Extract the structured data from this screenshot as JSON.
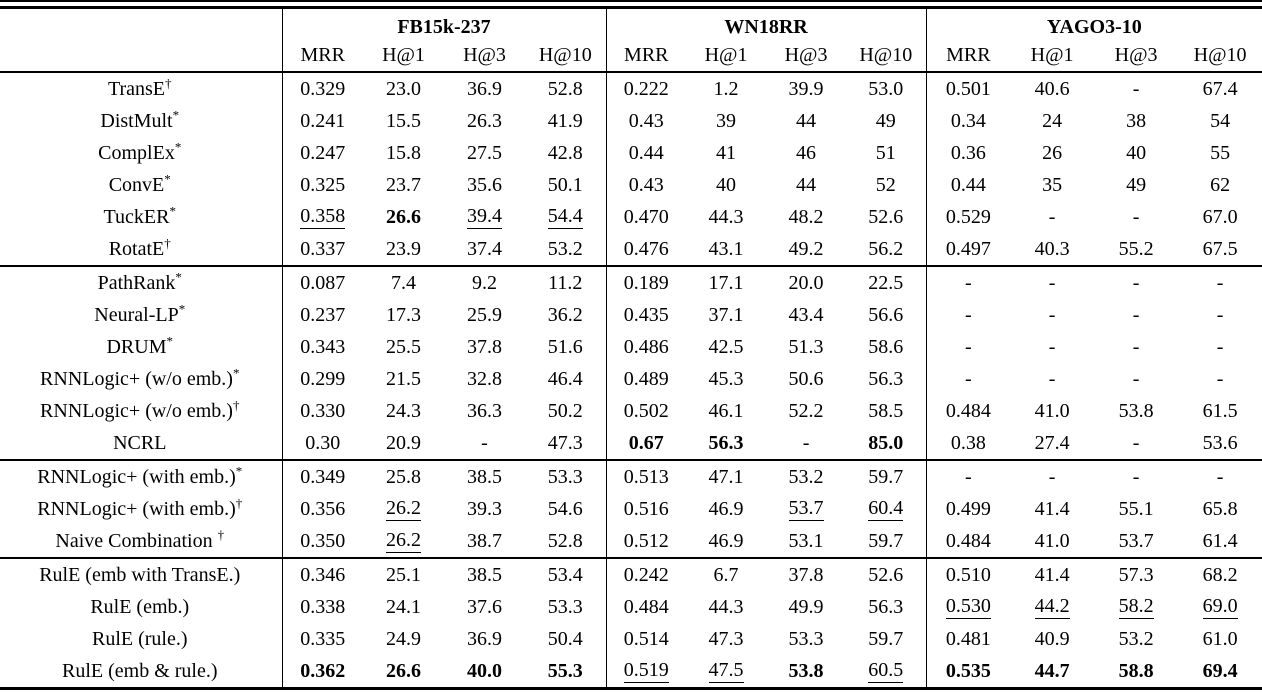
{
  "table": {
    "datasets": [
      {
        "label": "FB15k-237"
      },
      {
        "label": "WN18RR"
      },
      {
        "label": "YAGO3-10"
      }
    ],
    "metrics": [
      "MRR",
      "H@1",
      "H@3",
      "H@10"
    ],
    "groups": [
      {
        "rows": [
          {
            "label": "TransE",
            "sup": "†",
            "cells": [
              "0.329",
              "23.0",
              "36.9",
              "52.8",
              "0.222",
              "1.2",
              "39.9",
              "53.0",
              "0.501",
              "40.6",
              "-",
              "67.4"
            ]
          },
          {
            "label": "DistMult",
            "sup": "*",
            "cells": [
              "0.241",
              "15.5",
              "26.3",
              "41.9",
              "0.43",
              "39",
              "44",
              "49",
              "0.34",
              "24",
              "38",
              "54"
            ]
          },
          {
            "label": "ComplEx",
            "sup": "*",
            "cells": [
              "0.247",
              "15.8",
              "27.5",
              "42.8",
              "0.44",
              "41",
              "46",
              "51",
              "0.36",
              "26",
              "40",
              "55"
            ]
          },
          {
            "label": "ConvE",
            "sup": "*",
            "cells": [
              "0.325",
              "23.7",
              "35.6",
              "50.1",
              "0.43",
              "40",
              "44",
              "52",
              "0.44",
              "35",
              "49",
              "62"
            ]
          },
          {
            "label": "TuckER",
            "sup": "*",
            "cells": [
              "0.358|u",
              "26.6|b",
              "39.4|u",
              "54.4|u",
              "0.470",
              "44.3",
              "48.2",
              "52.6",
              "0.529",
              "-",
              "-",
              "67.0"
            ]
          },
          {
            "label": "RotatE",
            "sup": "†",
            "cells": [
              "0.337",
              "23.9",
              "37.4",
              "53.2",
              "0.476",
              "43.1",
              "49.2",
              "56.2",
              "0.497",
              "40.3",
              "55.2",
              "67.5"
            ]
          }
        ]
      },
      {
        "rows": [
          {
            "label": "PathRank",
            "sup": "*",
            "cells": [
              "0.087",
              "7.4",
              "9.2",
              "11.2",
              "0.189",
              "17.1",
              "20.0",
              "22.5",
              "-",
              "-",
              "-",
              "-"
            ]
          },
          {
            "label": "Neural-LP",
            "sup": "*",
            "cells": [
              "0.237",
              "17.3",
              "25.9",
              "36.2",
              "0.435",
              "37.1",
              "43.4",
              "56.6",
              "-",
              "-",
              "-",
              "-"
            ]
          },
          {
            "label": "DRUM",
            "sup": "*",
            "cells": [
              "0.343",
              "25.5",
              "37.8",
              "51.6",
              "0.486",
              "42.5",
              "51.3",
              "58.6",
              "-",
              "-",
              "-",
              "-"
            ]
          },
          {
            "label": "RNNLogic+ (w/o emb.)",
            "sup": "*",
            "cells": [
              "0.299",
              "21.5",
              "32.8",
              "46.4",
              "0.489",
              "45.3",
              "50.6",
              "56.3",
              "-",
              "-",
              "-",
              "-"
            ]
          },
          {
            "label": "RNNLogic+ (w/o emb.)",
            "sup": "†",
            "cells": [
              "0.330",
              "24.3",
              "36.3",
              "50.2",
              "0.502",
              "46.1",
              "52.2",
              "58.5",
              "0.484",
              "41.0",
              "53.8",
              "61.5"
            ]
          },
          {
            "label": "NCRL",
            "sup": "",
            "cells": [
              "0.30",
              "20.9",
              "-",
              "47.3",
              "0.67|b",
              "56.3|b",
              "-",
              "85.0|b",
              "0.38",
              "27.4",
              "-",
              "53.6"
            ]
          }
        ]
      },
      {
        "rows": [
          {
            "label": "RNNLogic+ (with emb.)",
            "sup": "*",
            "cells": [
              "0.349",
              "25.8",
              "38.5",
              "53.3",
              "0.513",
              "47.1",
              "53.2",
              "59.7",
              "-",
              "-",
              "-",
              "-"
            ]
          },
          {
            "label": "RNNLogic+ (with emb.)",
            "sup": "†",
            "cells": [
              "0.356",
              "26.2|u",
              "39.3",
              "54.6",
              "0.516",
              "46.9",
              "53.7|u",
              "60.4|u",
              "0.499",
              "41.4",
              "55.1",
              "65.8"
            ]
          },
          {
            "label": "Naive Combination",
            "sup": "†",
            "sup_gap": true,
            "cells": [
              "0.350",
              "26.2|u",
              "38.7",
              "52.8",
              "0.512",
              "46.9",
              "53.1",
              "59.7",
              "0.484",
              "41.0",
              "53.7",
              "61.4"
            ]
          }
        ]
      },
      {
        "rows": [
          {
            "label": "RulE (emb with TransE.)",
            "sup": "",
            "cells": [
              "0.346",
              "25.1",
              "38.5",
              "53.4",
              "0.242",
              "6.7",
              "37.8",
              "52.6",
              "0.510",
              "41.4",
              "57.3",
              "68.2"
            ]
          },
          {
            "label": "RulE (emb.)",
            "sup": "",
            "cells": [
              "0.338",
              "24.1",
              "37.6",
              "53.3",
              "0.484",
              "44.3",
              "49.9",
              "56.3",
              "0.530|u",
              "44.2|u",
              "58.2|u",
              "69.0|u"
            ]
          },
          {
            "label": "RulE (rule.)",
            "sup": "",
            "cells": [
              "0.335",
              "24.9",
              "36.9",
              "50.4",
              "0.514",
              "47.3",
              "53.3",
              "59.7",
              "0.481",
              "40.9",
              "53.2",
              "61.0"
            ]
          },
          {
            "label": "RulE (emb & rule.)",
            "sup": "",
            "cells": [
              "0.362|b",
              "26.6|b",
              "40.0|b",
              "55.3|b",
              "0.519|u",
              "47.5|u",
              "53.8|b",
              "60.5|u",
              "0.535|b",
              "44.7|b",
              "58.8|b",
              "69.4|b"
            ]
          }
        ]
      }
    ]
  }
}
